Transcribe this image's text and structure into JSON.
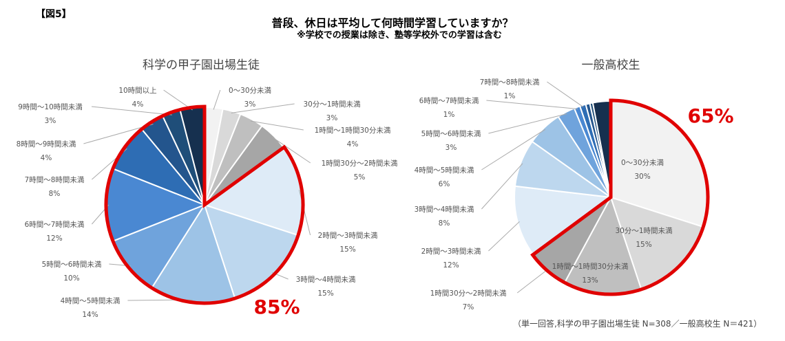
{
  "figure_label": "【図5】",
  "title": "普段、休日は平均して何時間学習していますか？",
  "subtitle": "※学校での授業は除き、塾等学校外での学習は含む",
  "footnote": "（単一回答,科学の甲子園出場生徒 N=308／一般高校生 N＝421）",
  "chart_data": [
    {
      "type": "pie",
      "title": "科学の甲子園出場生徒",
      "categories": [
        "0～30分未満",
        "30分～1時間未満",
        "1時間～1時間30分未満",
        "1時間30分～2時間未満",
        "2時間～3時間未満",
        "3時間～4時間未満",
        "4時間～5時間未満",
        "5時間～6時間未満",
        "6時間～7時間未満",
        "7時間～8時間未満",
        "8時間～9時間未満",
        "9時間～10時間未満",
        "10時間以上"
      ],
      "values": [
        3,
        3,
        4,
        5,
        15,
        15,
        14,
        10,
        12,
        8,
        4,
        3,
        4
      ],
      "value_labels": [
        "3%",
        "3%",
        "4%",
        "5%",
        "15%",
        "15%",
        "14%",
        "10%",
        "12%",
        "8%",
        "4%",
        "3%",
        "4%"
      ],
      "highlight": {
        "from_index": 4,
        "to_index": 12,
        "label": "85%"
      }
    },
    {
      "type": "pie",
      "title": "一般高校生",
      "categories": [
        "0～30分未満",
        "30分～1時間未満",
        "1時間～1時間30分未満",
        "1時間30分～2時間未満",
        "2時間～3時間未満",
        "3時間～4時間未満",
        "4時間～5時間未満",
        "5時間～6時間未満",
        "6時間～7時間未満",
        "7時間～8時間未満",
        "",
        "",
        ""
      ],
      "values": [
        30,
        15,
        13,
        7,
        12,
        8,
        6,
        3,
        1,
        1,
        0.7,
        0.5,
        3
      ],
      "value_labels": [
        "30%",
        "15%",
        "13%",
        "7%",
        "12%",
        "8%",
        "6%",
        "3%",
        "1%",
        "1%",
        "",
        "",
        ""
      ],
      "highlight": {
        "from_index": 0,
        "to_index": 3,
        "label": "65%"
      }
    }
  ],
  "colors": [
    "#f2f2f2",
    "#d9d9d9",
    "#bfbfbf",
    "#a6a6a6",
    "#deebf7",
    "#bdd7ee",
    "#9dc3e6",
    "#6fa3dc",
    "#4a88d2",
    "#2e6db4",
    "#23558d",
    "#1f4e79",
    "#16304f"
  ],
  "highlight_color": "#e00000"
}
